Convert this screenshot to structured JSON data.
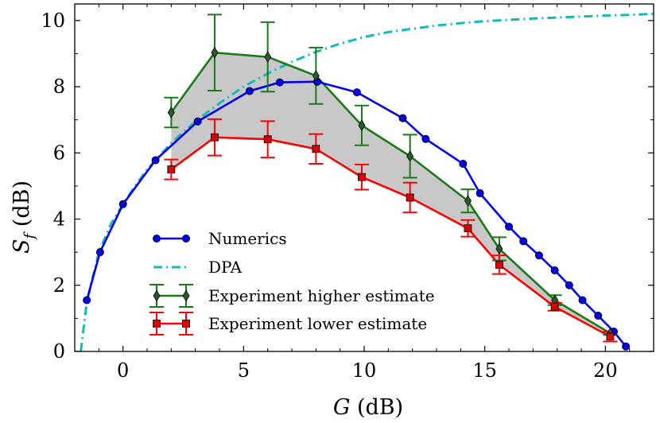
{
  "chart_data": {
    "type": "line",
    "xlabel": "G (dB)",
    "ylabel": "S_f (dB)",
    "xlim": [
      -2,
      22
    ],
    "ylim": [
      0,
      10.5
    ],
    "xticks": [
      0,
      5,
      10,
      15,
      20
    ],
    "yticks": [
      0,
      2,
      4,
      6,
      8,
      10
    ],
    "grid": false,
    "legend_placement": "lower-left",
    "shaded_region": "between Experiment higher estimate and Experiment lower estimate",
    "colors": {
      "numerics": "#0000ee",
      "dpa": "#11bbbb",
      "higher": "#1a7a1a",
      "higher_marker": "#2a5a2a",
      "lower": "#ff0000",
      "lower_marker": "#dd0000",
      "shade": "#c8c8c8"
    },
    "series": [
      {
        "name": "Numerics",
        "style": "line-circle",
        "x": [
          -1.5,
          -0.95,
          0.0,
          1.35,
          3.1,
          5.25,
          6.5,
          8.05,
          9.7,
          11.6,
          12.55,
          14.1,
          14.8,
          16.0,
          16.6,
          17.25,
          17.9,
          18.5,
          19.05,
          19.7,
          20.35,
          20.85
        ],
        "y": [
          1.55,
          3.0,
          4.45,
          5.78,
          6.95,
          7.87,
          8.13,
          8.15,
          7.83,
          7.05,
          6.42,
          5.67,
          4.78,
          3.77,
          3.33,
          2.9,
          2.45,
          2.0,
          1.55,
          1.08,
          0.6,
          0.15
        ]
      },
      {
        "name": "DPA",
        "style": "dash-dot",
        "x": [
          -1.75,
          -1.5,
          -1.0,
          -0.5,
          0.0,
          0.5,
          1.0,
          2.0,
          3.0,
          4.0,
          5.0,
          6.0,
          7.0,
          8.0,
          9.0,
          10.0,
          11.0,
          12.0,
          13.0,
          14.0,
          15.0,
          16.0,
          17.0,
          18.0,
          19.0,
          20.0,
          21.0,
          22.0
        ],
        "y": [
          0.0,
          1.5,
          3.0,
          3.85,
          4.45,
          5.0,
          5.5,
          6.3,
          6.95,
          7.5,
          8.0,
          8.4,
          8.75,
          9.05,
          9.3,
          9.5,
          9.65,
          9.75,
          9.85,
          9.92,
          9.98,
          10.02,
          10.06,
          10.09,
          10.12,
          10.15,
          10.17,
          10.2
        ]
      },
      {
        "name": "Experiment higher estimate",
        "style": "line-diamond-errorbar",
        "x": [
          2.0,
          3.8,
          6.0,
          8.0,
          9.9,
          11.9,
          14.3,
          15.6,
          17.9,
          20.2
        ],
        "y": [
          7.22,
          9.03,
          8.9,
          8.33,
          6.83,
          5.9,
          4.55,
          3.1,
          1.55,
          0.55
        ],
        "yerr": [
          0.45,
          1.15,
          1.05,
          0.85,
          0.6,
          0.65,
          0.35,
          0.35,
          0.15,
          0.05
        ]
      },
      {
        "name": "Experiment lower estimate",
        "style": "line-square-errorbar",
        "x": [
          2.0,
          3.8,
          6.0,
          8.0,
          9.9,
          11.9,
          14.3,
          15.6,
          17.9,
          20.2
        ],
        "y": [
          5.5,
          6.47,
          6.41,
          6.12,
          5.27,
          4.65,
          3.72,
          2.62,
          1.35,
          0.45
        ],
        "yerr": [
          0.3,
          0.55,
          0.55,
          0.45,
          0.38,
          0.45,
          0.25,
          0.28,
          0.12,
          0.15
        ]
      }
    ]
  }
}
